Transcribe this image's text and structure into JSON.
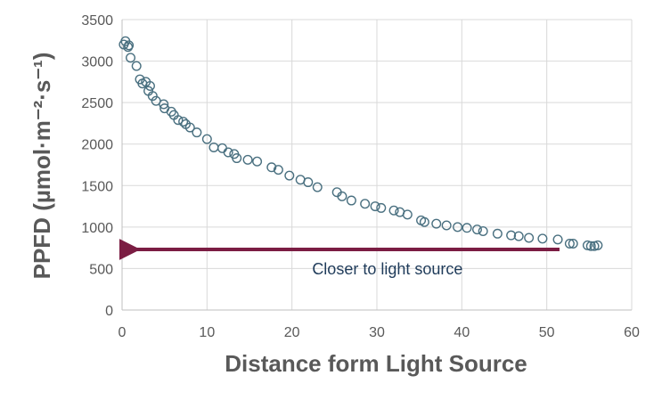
{
  "chart_data": {
    "type": "scatter",
    "xlabel": "Distance form Light Source",
    "ylabel": "PPFD (µmol·m⁻²·s⁻¹)",
    "xlim": [
      0,
      60
    ],
    "ylim": [
      0,
      3500
    ],
    "xticks": [
      0,
      10,
      20,
      30,
      40,
      50,
      60
    ],
    "yticks": [
      0,
      500,
      1000,
      1500,
      2000,
      2500,
      3000,
      3500
    ],
    "grid": true,
    "marker_color": "#4a7080",
    "arrow_color": "#7b1d43",
    "annotation": {
      "text": "Closer to light source",
      "arrow_from": [
        51.5,
        730
      ],
      "arrow_to": [
        0.5,
        730
      ]
    },
    "series": [
      {
        "points": [
          [
            0.2,
            3200
          ],
          [
            0.4,
            3240
          ],
          [
            0.7,
            3170
          ],
          [
            0.8,
            3190
          ],
          [
            1.0,
            3040
          ],
          [
            1.7,
            2940
          ],
          [
            2.1,
            2780
          ],
          [
            2.4,
            2730
          ],
          [
            2.8,
            2750
          ],
          [
            3.1,
            2640
          ],
          [
            3.3,
            2700
          ],
          [
            3.6,
            2580
          ],
          [
            4.0,
            2520
          ],
          [
            4.9,
            2480
          ],
          [
            5.0,
            2430
          ],
          [
            5.8,
            2390
          ],
          [
            6.1,
            2350
          ],
          [
            6.6,
            2290
          ],
          [
            7.2,
            2270
          ],
          [
            7.5,
            2240
          ],
          [
            8.0,
            2200
          ],
          [
            8.8,
            2140
          ],
          [
            10.0,
            2060
          ],
          [
            10.8,
            1960
          ],
          [
            11.8,
            1950
          ],
          [
            12.5,
            1900
          ],
          [
            13.2,
            1880
          ],
          [
            13.5,
            1830
          ],
          [
            14.8,
            1810
          ],
          [
            15.9,
            1790
          ],
          [
            17.6,
            1720
          ],
          [
            18.4,
            1690
          ],
          [
            19.7,
            1620
          ],
          [
            21.0,
            1570
          ],
          [
            21.9,
            1540
          ],
          [
            23.0,
            1480
          ],
          [
            25.3,
            1420
          ],
          [
            25.9,
            1370
          ],
          [
            27.0,
            1320
          ],
          [
            28.6,
            1280
          ],
          [
            29.8,
            1250
          ],
          [
            30.5,
            1230
          ],
          [
            32.0,
            1200
          ],
          [
            32.7,
            1180
          ],
          [
            33.6,
            1150
          ],
          [
            35.2,
            1080
          ],
          [
            35.6,
            1060
          ],
          [
            37.0,
            1040
          ],
          [
            38.2,
            1020
          ],
          [
            39.5,
            1000
          ],
          [
            40.6,
            990
          ],
          [
            41.8,
            970
          ],
          [
            42.5,
            950
          ],
          [
            44.2,
            920
          ],
          [
            45.8,
            900
          ],
          [
            46.7,
            890
          ],
          [
            47.9,
            870
          ],
          [
            49.5,
            860
          ],
          [
            51.3,
            850
          ],
          [
            52.7,
            800
          ],
          [
            53.1,
            800
          ],
          [
            54.8,
            780
          ],
          [
            55.2,
            770
          ],
          [
            55.6,
            770
          ],
          [
            56.0,
            780
          ]
        ]
      }
    ]
  }
}
